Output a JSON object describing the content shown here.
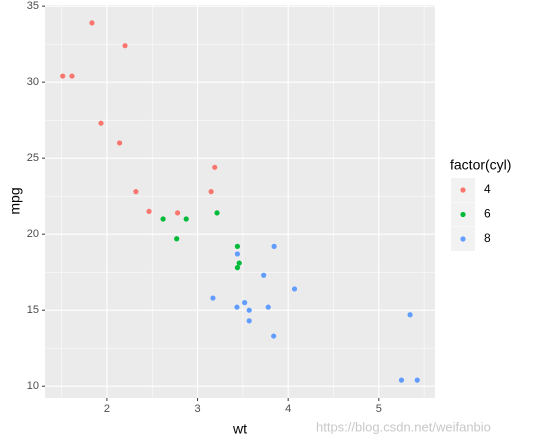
{
  "chart_data": {
    "type": "scatter",
    "x_label": "wt",
    "y_label": "mpg",
    "legend_title": "factor(cyl)",
    "xlim": [
      1.317,
      5.62
    ],
    "ylim": [
      9.225,
      35.075
    ],
    "xticks": [
      2,
      3,
      4,
      5
    ],
    "yticks": [
      10,
      15,
      20,
      25,
      30,
      35
    ],
    "x_minor_ticks": [
      1.5,
      2.5,
      3.5,
      4.5,
      5.5
    ],
    "y_minor_ticks": [
      12.5,
      17.5,
      22.5,
      27.5,
      32.5
    ],
    "grid": true,
    "legend_position": "right",
    "series": [
      {
        "name": "4",
        "color": "#F8766D",
        "x": [
          2.32,
          3.19,
          3.15,
          2.2,
          1.615,
          1.835,
          2.465,
          1.935,
          2.14,
          1.513,
          2.78
        ],
        "values": [
          22.8,
          24.4,
          22.8,
          32.4,
          30.4,
          33.9,
          21.5,
          27.3,
          26.0,
          30.4,
          21.4
        ]
      },
      {
        "name": "6",
        "color": "#00BA38",
        "x": [
          2.62,
          2.875,
          3.215,
          3.46,
          3.44,
          3.44,
          2.77
        ],
        "values": [
          21.0,
          21.0,
          21.4,
          18.1,
          19.2,
          17.8,
          19.7
        ]
      },
      {
        "name": "8",
        "color": "#619CFF",
        "x": [
          3.44,
          3.57,
          4.07,
          3.73,
          3.78,
          5.25,
          5.424,
          5.345,
          3.52,
          3.435,
          3.84,
          3.845,
          3.17,
          3.57
        ],
        "values": [
          18.7,
          14.3,
          16.4,
          17.3,
          15.2,
          10.4,
          10.4,
          14.7,
          15.5,
          15.2,
          13.3,
          19.2,
          15.8,
          15.0
        ]
      }
    ]
  },
  "watermark": "https://blog.csdn.net/weifanbio"
}
